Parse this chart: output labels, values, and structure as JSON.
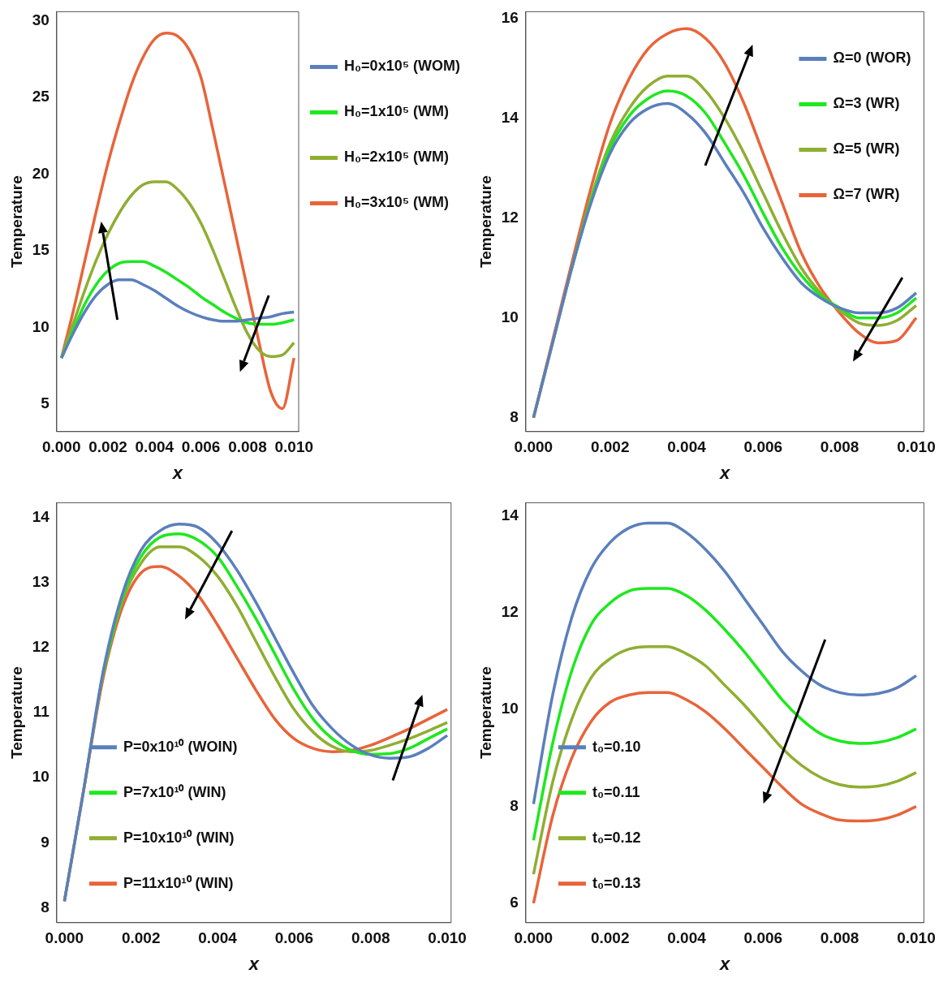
{
  "chart_data": [
    {
      "type": "line",
      "xlabel": "x",
      "ylabel": "Temperature",
      "x": [
        0,
        0.0005,
        0.001,
        0.0015,
        0.002,
        0.0025,
        0.003,
        0.0035,
        0.004,
        0.0045,
        0.005,
        0.0055,
        0.006,
        0.0065,
        0.007,
        0.0075,
        0.008,
        0.0085,
        0.009,
        0.0095,
        0.01
      ],
      "xlim": [
        -0.0002,
        0.0102
      ],
      "ylim": [
        3.2,
        30.6
      ],
      "xticks": [
        {
          "value": 0,
          "label": "0.000"
        },
        {
          "value": 0.002,
          "label": "0.002"
        },
        {
          "value": 0.004,
          "label": "0.004"
        },
        {
          "value": 0.006,
          "label": "0.006"
        },
        {
          "value": 0.008,
          "label": "0.008"
        },
        {
          "value": 0.01,
          "label": "0.010"
        }
      ],
      "yticks": [
        5,
        10,
        15,
        20,
        25,
        30
      ],
      "legend": "right",
      "series": [
        {
          "name": "H₀=0x10⁵ (WOM)",
          "color": "#5b7fbc",
          "values": [
            8,
            9.6,
            11.0,
            12.1,
            12.8,
            13.1,
            13.1,
            12.8,
            12.4,
            11.9,
            11.4,
            11.0,
            10.7,
            10.5,
            10.4,
            10.4,
            10.5,
            10.6,
            10.7,
            10.9,
            11.0
          ]
        },
        {
          "name": "H₀=1x10⁵ (WM)",
          "color": "#1ee81e",
          "values": [
            8,
            9.8,
            11.5,
            12.8,
            13.7,
            14.2,
            14.3,
            14.3,
            14.0,
            13.6,
            13.1,
            12.6,
            12.0,
            11.5,
            11.0,
            10.6,
            10.3,
            10.2,
            10.2,
            10.3,
            10.5
          ]
        },
        {
          "name": "H₀=2x10⁵ (WM)",
          "color": "#8fae32",
          "values": [
            8,
            10.2,
            12.4,
            14.4,
            16.1,
            17.5,
            18.6,
            19.3,
            19.5,
            19.5,
            19.0,
            18.1,
            16.8,
            15.1,
            13.2,
            11.3,
            9.6,
            8.5,
            8.1,
            8.2,
            9.0
          ]
        },
        {
          "name": "H₀=3x10⁵ (WM)",
          "color": "#e8643a",
          "values": [
            8,
            11.0,
            14.3,
            17.6,
            20.7,
            23.4,
            25.8,
            27.6,
            28.8,
            29.2,
            29.0,
            28.1,
            26.3,
            23.0,
            19.5,
            16.0,
            12.5,
            9.0,
            5.8,
            4.7,
            8.0
          ]
        }
      ]
    },
    {
      "type": "line",
      "xlabel": "x",
      "ylabel": "Temperature",
      "x": [
        0,
        0.0005,
        0.001,
        0.0015,
        0.002,
        0.0025,
        0.003,
        0.0035,
        0.004,
        0.0045,
        0.005,
        0.0055,
        0.006,
        0.0065,
        0.007,
        0.0075,
        0.008,
        0.0085,
        0.009,
        0.0095,
        0.01
      ],
      "xlim": [
        -0.0002,
        0.0102
      ],
      "ylim": [
        7.72,
        16.14
      ],
      "xticks": [
        {
          "value": 0,
          "label": "0.000"
        },
        {
          "value": 0.002,
          "label": "0.002"
        },
        {
          "value": 0.004,
          "label": "0.004"
        },
        {
          "value": 0.006,
          "label": "0.006"
        },
        {
          "value": 0.008,
          "label": "0.008"
        },
        {
          "value": 0.01,
          "label": "0.010"
        }
      ],
      "yticks": [
        8,
        10,
        12,
        14,
        16
      ],
      "legend": "top right",
      "series": [
        {
          "name": "Ω=0 (WOR)",
          "color": "#5b7fbc",
          "values": [
            8,
            9.5,
            11.0,
            12.3,
            13.3,
            13.9,
            14.2,
            14.3,
            14.1,
            13.7,
            13.1,
            12.5,
            11.8,
            11.2,
            10.7,
            10.4,
            10.2,
            10.1,
            10.1,
            10.2,
            10.5
          ]
        },
        {
          "name": "Ω=3 (WR)",
          "color": "#1ee81e",
          "values": [
            null,
            null,
            11.0,
            12.35,
            13.4,
            14.05,
            14.4,
            14.55,
            14.45,
            14.1,
            13.5,
            12.85,
            12.1,
            11.4,
            10.85,
            10.45,
            10.2,
            10.0,
            10.0,
            10.1,
            10.4
          ]
        },
        {
          "name": "Ω=5 (WR)",
          "color": "#8fae32",
          "values": [
            8,
            9.5,
            11.0,
            12.4,
            13.5,
            14.2,
            14.65,
            14.85,
            14.85,
            14.55,
            14.0,
            13.3,
            12.5,
            11.7,
            11.0,
            10.5,
            10.15,
            9.9,
            9.85,
            9.95,
            10.25
          ]
        },
        {
          "name": "Ω=7 (WR)",
          "color": "#e8643a",
          "values": [
            8,
            9.55,
            11.1,
            12.6,
            13.9,
            14.8,
            15.4,
            15.7,
            15.8,
            15.6,
            15.1,
            14.3,
            13.3,
            12.3,
            11.3,
            10.6,
            10.1,
            9.7,
            9.5,
            9.55,
            10.0
          ]
        }
      ]
    },
    {
      "type": "line",
      "xlabel": "x",
      "ylabel": "Temperature",
      "x": [
        0,
        0.0005,
        0.001,
        0.0015,
        0.002,
        0.0025,
        0.003,
        0.0035,
        0.004,
        0.0045,
        0.005,
        0.0055,
        0.006,
        0.0065,
        0.007,
        0.0075,
        0.008,
        0.0085,
        0.009,
        0.0095,
        0.01
      ],
      "xlim": [
        -0.0002,
        0.0101
      ],
      "ylim": [
        7.77,
        14.23
      ],
      "xticks": [
        {
          "value": 0,
          "label": "0.000"
        },
        {
          "value": 0.002,
          "label": "0.002"
        },
        {
          "value": 0.004,
          "label": "0.004"
        },
        {
          "value": 0.006,
          "label": "0.006"
        },
        {
          "value": 0.008,
          "label": "0.008"
        },
        {
          "value": 0.01,
          "label": "0.010"
        }
      ],
      "yticks": [
        8,
        9,
        10,
        11,
        12,
        13,
        14
      ],
      "legend": "bottom left",
      "series": [
        {
          "name": "P=0x10¹⁰ (WOIN)",
          "color": "#5b7fbc",
          "values": [
            8.1,
            9.8,
            11.6,
            12.8,
            13.5,
            13.8,
            13.9,
            13.85,
            13.6,
            13.2,
            12.7,
            12.15,
            11.6,
            11.1,
            10.75,
            10.5,
            10.35,
            10.3,
            10.32,
            10.45,
            10.65
          ]
        },
        {
          "name": "P=7x10¹⁰ (WIN)",
          "color": "#1ee81e",
          "values": [
            null,
            null,
            11.6,
            12.75,
            13.4,
            13.7,
            13.75,
            13.65,
            13.4,
            12.95,
            12.45,
            11.9,
            11.35,
            10.9,
            10.6,
            10.42,
            10.36,
            10.37,
            10.45,
            10.6,
            10.75
          ]
        },
        {
          "name": "P=10x10¹⁰ (WIN)",
          "color": "#8fae32",
          "values": [
            8.1,
            9.8,
            11.55,
            12.7,
            13.3,
            13.55,
            13.55,
            13.4,
            13.1,
            12.65,
            12.1,
            11.55,
            11.05,
            10.7,
            10.48,
            10.4,
            10.42,
            10.5,
            10.6,
            10.72,
            10.85
          ]
        },
        {
          "name": "P=11x10¹⁰ (WIN)",
          "color": "#e8643a",
          "values": [
            8.1,
            9.8,
            11.5,
            12.6,
            13.15,
            13.25,
            13.1,
            12.8,
            12.35,
            11.85,
            11.35,
            10.9,
            10.6,
            10.45,
            10.4,
            10.42,
            10.5,
            10.62,
            10.75,
            10.9,
            11.05
          ]
        }
      ]
    },
    {
      "type": "line",
      "xlabel": "x",
      "ylabel": "Temperature",
      "x": [
        0,
        0.0005,
        0.001,
        0.0015,
        0.002,
        0.0025,
        0.003,
        0.0035,
        0.004,
        0.0045,
        0.005,
        0.0055,
        0.006,
        0.0065,
        0.007,
        0.0075,
        0.008,
        0.0085,
        0.009,
        0.0095,
        0.01
      ],
      "xlim": [
        -0.0002,
        0.0102
      ],
      "ylim": [
        5.6,
        14.27
      ],
      "xticks": [
        {
          "value": 0,
          "label": "0.000"
        },
        {
          "value": 0.002,
          "label": "0.002"
        },
        {
          "value": 0.004,
          "label": "0.004"
        },
        {
          "value": 0.006,
          "label": "0.006"
        },
        {
          "value": 0.008,
          "label": "0.008"
        },
        {
          "value": 0.01,
          "label": "0.010"
        }
      ],
      "yticks": [
        6,
        8,
        10,
        12,
        14
      ],
      "legend": "bottom left",
      "series": [
        {
          "name": "t₀=0.10",
          "color": "#5b7fbc",
          "values": [
            8.05,
            10.3,
            11.9,
            12.9,
            13.45,
            13.75,
            13.85,
            13.85,
            13.65,
            13.3,
            12.85,
            12.3,
            11.75,
            11.2,
            10.8,
            10.5,
            10.35,
            10.3,
            10.33,
            10.45,
            10.7
          ]
        },
        {
          "name": "t₀=0.11",
          "color": "#1ee81e",
          "values": [
            7.3,
            9.3,
            10.8,
            11.75,
            12.2,
            12.45,
            12.5,
            12.5,
            12.35,
            12.05,
            11.65,
            11.2,
            10.7,
            10.2,
            9.8,
            9.5,
            9.35,
            9.3,
            9.32,
            9.42,
            9.6
          ]
        },
        {
          "name": "t₀=0.12",
          "color": "#8fae32",
          "values": [
            6.6,
            8.5,
            9.8,
            10.65,
            11.05,
            11.25,
            11.3,
            11.3,
            11.15,
            10.9,
            10.5,
            10.1,
            9.65,
            9.2,
            8.85,
            8.6,
            8.45,
            8.4,
            8.42,
            8.52,
            8.7
          ]
        },
        {
          "name": "t₀=0.13",
          "color": "#e8643a",
          "values": [
            6.0,
            7.8,
            9.0,
            9.75,
            10.15,
            10.3,
            10.35,
            10.35,
            10.2,
            9.95,
            9.6,
            9.2,
            8.8,
            8.4,
            8.05,
            7.85,
            7.72,
            7.7,
            7.72,
            7.82,
            8.0
          ]
        }
      ]
    }
  ]
}
